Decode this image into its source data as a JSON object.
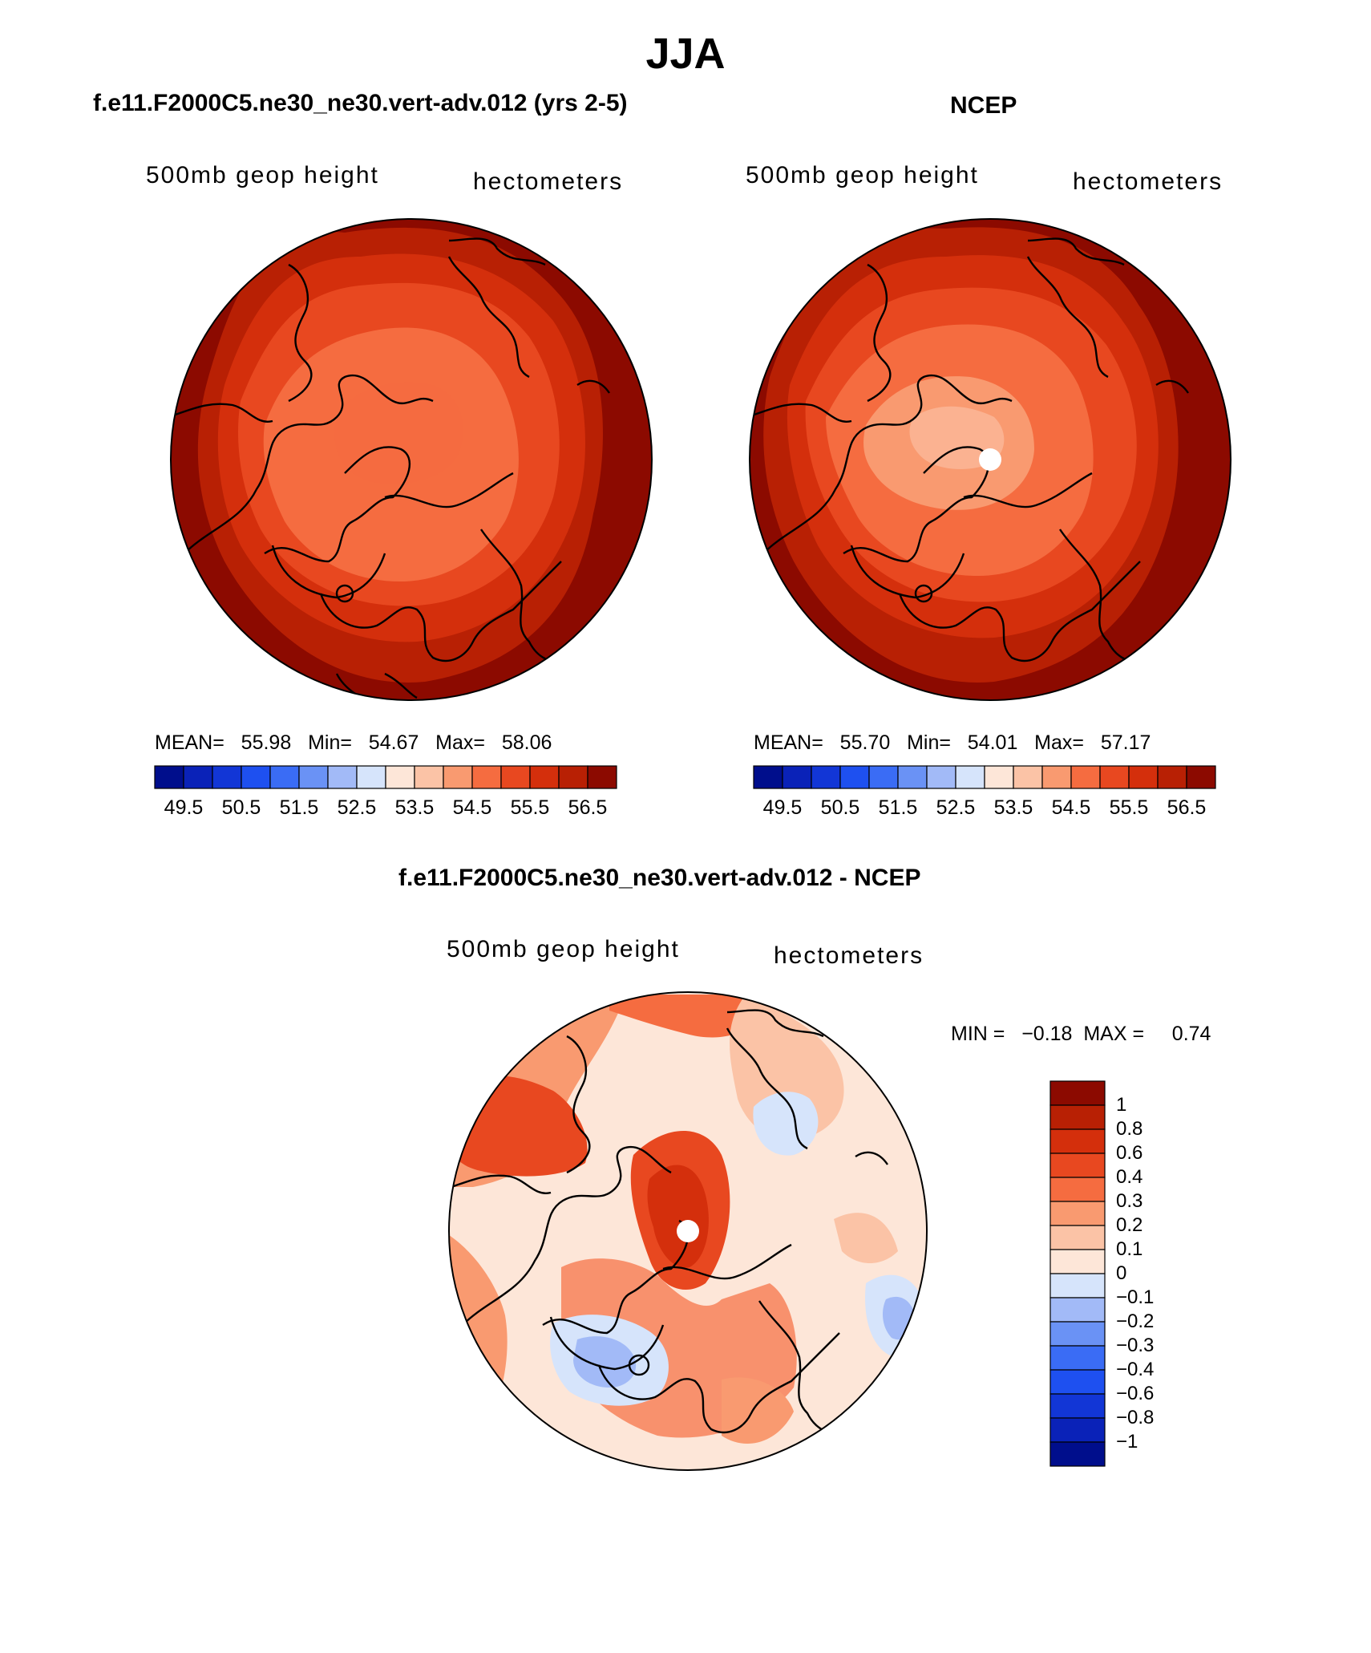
{
  "title": "JJA",
  "panels": {
    "model": {
      "title": "f.e11.F2000C5.ne30_ne30.vert-adv.012 (yrs 2-5)",
      "field": "500mb geop height",
      "units": "hectometers",
      "stats": "MEAN=   55.98   Min=   54.67   Max=   58.06",
      "mean": 55.98,
      "min": 54.67,
      "max": 58.06
    },
    "obs": {
      "title": "NCEP",
      "field": "500mb geop height",
      "units": "hectometers",
      "stats": "MEAN=   55.70   Min=   54.01   Max=   57.17",
      "mean": 55.7,
      "min": 54.01,
      "max": 57.17
    },
    "diff": {
      "title": "f.e11.F2000C5.ne30_ne30.vert-adv.012 - NCEP",
      "field": "500mb geop height",
      "units": "hectometers",
      "stats": "MIN =   −0.18  MAX =     0.74",
      "min": -0.18,
      "max": 0.74
    }
  },
  "abs_colorbar": {
    "colors": [
      "#000e8c",
      "#0a22b8",
      "#1236d6",
      "#1e50f0",
      "#3a6cf5",
      "#6a92f5",
      "#a2baf7",
      "#d6e4fb",
      "#fde6d8",
      "#fbc3a6",
      "#f99a70",
      "#f56c40",
      "#e84820",
      "#d42f0c",
      "#b82004",
      "#8c0a00"
    ],
    "tick_labels": [
      "49.5",
      "50.5",
      "51.5",
      "52.5",
      "53.5",
      "54.5",
      "55.5",
      "56.5"
    ]
  },
  "diff_colorbar": {
    "colors": [
      "#8c0a00",
      "#b82004",
      "#d42f0c",
      "#e84820",
      "#f56c40",
      "#f99a70",
      "#fbc3a6",
      "#fde6d8",
      "#d6e4fb",
      "#a2baf7",
      "#6a92f5",
      "#3a6cf5",
      "#1e50f0",
      "#1236d6",
      "#0a22b8",
      "#000e8c"
    ],
    "tick_labels": [
      "1",
      "0.8",
      "0.6",
      "0.4",
      "0.3",
      "0.2",
      "0.1",
      "0",
      "−0.1",
      "−0.2",
      "−0.3",
      "−0.4",
      "−0.6",
      "−0.8",
      "−1"
    ]
  }
}
